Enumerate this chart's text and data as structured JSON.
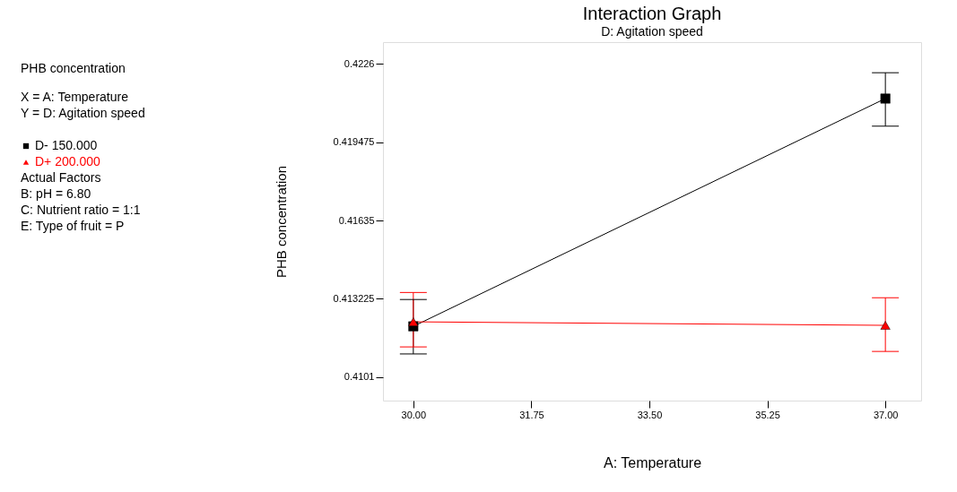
{
  "chart_data": {
    "type": "line",
    "title": "Interaction Graph",
    "subtitle": "D: Agitation speed",
    "xlabel": "A: Temperature",
    "ylabel": "PHB concentration",
    "x": [
      30,
      37
    ],
    "series": [
      {
        "name": "D- 150.000",
        "color": "#000000",
        "marker": "square",
        "values": [
          0.41213,
          0.42121
        ],
        "errors": [
          [
            0.41103,
            0.4132
          ],
          [
            0.42011,
            0.42224
          ]
        ]
      },
      {
        "name": "D+ 200.000",
        "color": "#ff0000",
        "marker": "triangle",
        "values": [
          0.41231,
          0.41217
        ],
        "errors": [
          [
            0.41131,
            0.41348
          ],
          [
            0.41113,
            0.41327
          ]
        ]
      }
    ],
    "xlim": [
      29.55,
      37.53
    ],
    "xticks": [
      {
        "value": 30,
        "label": "30.00"
      },
      {
        "value": 31.75,
        "label": "31.75"
      },
      {
        "value": 33.5,
        "label": "33.50"
      },
      {
        "value": 35.25,
        "label": "35.25"
      },
      {
        "value": 37,
        "label": "37.00"
      }
    ],
    "ylim": [
      0.40917,
      0.42346
    ],
    "yticks": [
      0.4101,
      0.413225,
      0.41635,
      0.419475,
      0.4226
    ],
    "grid": false,
    "legend": "left",
    "annotations": [
      "PHB concentration",
      "X = A: Temperature",
      "Y = D: Agitation speed",
      "Actual Factors",
      "B: pH = 6.80",
      "C: Nutrient ratio = 1:1",
      "E: Type of fruit = P"
    ]
  }
}
